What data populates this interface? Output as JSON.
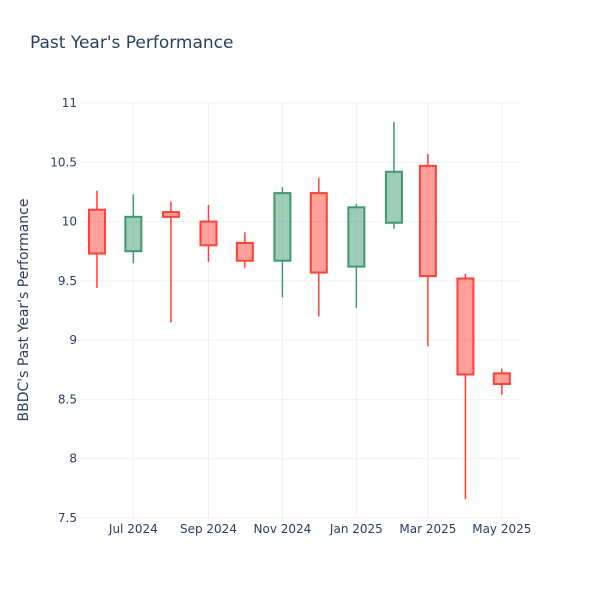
{
  "chart_data": {
    "type": "candlestick",
    "title": "Past Year's Performance",
    "ylabel": "BBDC's Past Year's Performance",
    "xlabel": "",
    "ylim": [
      7.5,
      11
    ],
    "yticks": [
      7.5,
      8,
      8.5,
      9,
      9.5,
      10,
      10.5,
      11
    ],
    "ytick_labels": [
      "7.5",
      "8",
      "8.5",
      "9",
      "9.5",
      "10",
      "10.5",
      "11"
    ],
    "xticks": [
      {
        "date": "2024-07-01",
        "label": "Jul 2024"
      },
      {
        "date": "2024-09-01",
        "label": "Sep 2024"
      },
      {
        "date": "2024-11-01",
        "label": "Nov 2024"
      },
      {
        "date": "2025-01-01",
        "label": "Jan 2025"
      },
      {
        "date": "2025-03-01",
        "label": "Mar 2025"
      },
      {
        "date": "2025-05-01",
        "label": "May 2025"
      }
    ],
    "xlim": [
      "2024-05-18",
      "2025-05-16"
    ],
    "grid": true,
    "colors": {
      "increasing": "#3d9970",
      "decreasing": "#ff4136"
    },
    "candles": [
      {
        "date": "2024-06-01",
        "open": 10.1,
        "high": 10.26,
        "low": 9.44,
        "close": 9.73
      },
      {
        "date": "2024-07-01",
        "open": 9.75,
        "high": 10.23,
        "low": 9.65,
        "close": 10.04
      },
      {
        "date": "2024-08-01",
        "open": 10.08,
        "high": 10.17,
        "low": 9.15,
        "close": 10.04
      },
      {
        "date": "2024-09-01",
        "open": 10.0,
        "high": 10.14,
        "low": 9.66,
        "close": 9.8
      },
      {
        "date": "2024-10-01",
        "open": 9.82,
        "high": 9.91,
        "low": 9.61,
        "close": 9.67
      },
      {
        "date": "2024-11-01",
        "open": 9.67,
        "high": 10.29,
        "low": 9.36,
        "close": 10.24
      },
      {
        "date": "2024-12-01",
        "open": 10.24,
        "high": 10.37,
        "low": 9.2,
        "close": 9.57
      },
      {
        "date": "2025-01-01",
        "open": 9.62,
        "high": 10.15,
        "low": 9.27,
        "close": 10.12
      },
      {
        "date": "2025-02-01",
        "open": 9.99,
        "high": 10.84,
        "low": 9.94,
        "close": 10.42
      },
      {
        "date": "2025-03-01",
        "open": 10.47,
        "high": 10.57,
        "low": 8.95,
        "close": 9.54
      },
      {
        "date": "2025-04-01",
        "open": 9.52,
        "high": 9.56,
        "low": 7.66,
        "close": 8.71
      },
      {
        "date": "2025-05-01",
        "open": 8.72,
        "high": 8.76,
        "low": 8.54,
        "close": 8.63
      }
    ]
  }
}
